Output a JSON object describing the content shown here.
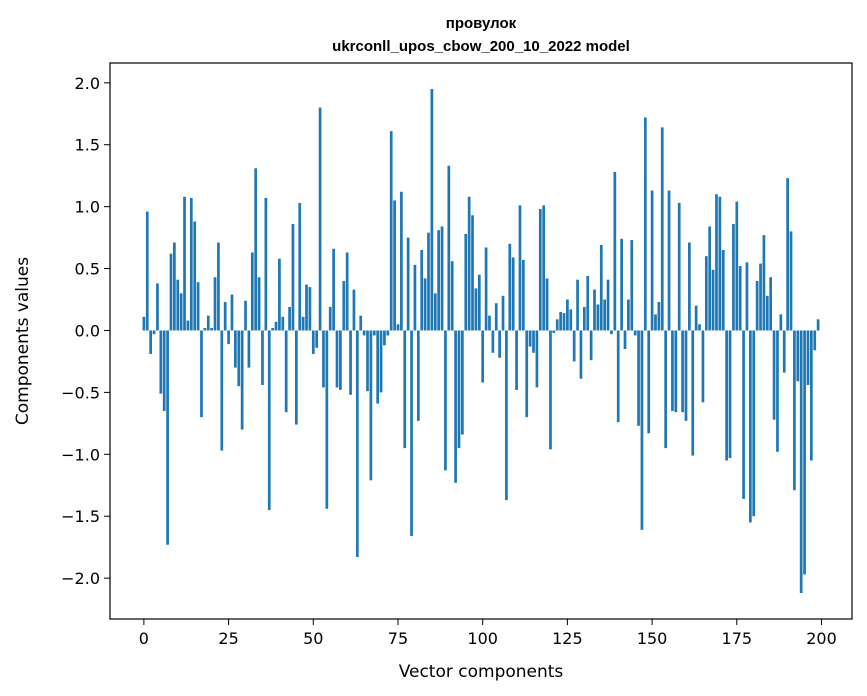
{
  "chart_data": {
    "type": "bar",
    "title_line1": "провулок",
    "title_line2": "ukrconll_upos_cbow_200_10_2022 model",
    "xlabel": "Vector components",
    "ylabel": "Components values",
    "xlim": [
      -10,
      209
    ],
    "ylim": [
      -2.33,
      2.16
    ],
    "xticks": [
      0,
      25,
      50,
      75,
      100,
      125,
      150,
      175,
      200
    ],
    "yticks": [
      -2.0,
      -1.5,
      -1.0,
      -0.5,
      0.0,
      0.5,
      1.0,
      1.5,
      2.0
    ],
    "ytick_labels": [
      "−2.0",
      "−1.5",
      "−1.0",
      "−0.5",
      "0.0",
      "0.5",
      "1.0",
      "1.5",
      "2.0"
    ],
    "bar_color": "#1f77b4",
    "grid": false,
    "values": [
      0.11,
      0.96,
      -0.19,
      -0.03,
      0.38,
      -0.51,
      -0.65,
      -1.73,
      0.62,
      0.71,
      0.41,
      0.3,
      1.08,
      0.08,
      1.07,
      0.88,
      0.39,
      -0.7,
      0.02,
      0.12,
      0.02,
      0.43,
      0.71,
      -0.97,
      0.23,
      -0.11,
      0.29,
      -0.3,
      -0.45,
      -0.8,
      0.24,
      -0.3,
      0.63,
      1.31,
      0.43,
      -0.44,
      1.07,
      -1.45,
      0.02,
      0.07,
      0.58,
      0.11,
      -0.66,
      0.19,
      0.86,
      -0.76,
      1.03,
      0.11,
      0.37,
      0.35,
      -0.19,
      -0.14,
      1.8,
      -0.46,
      -1.44,
      0.19,
      0.66,
      -0.46,
      -0.48,
      0.4,
      0.63,
      -0.52,
      0.33,
      -1.83,
      0.12,
      -0.04,
      -0.49,
      -1.21,
      -0.04,
      -0.59,
      -0.5,
      -0.12,
      -0.04,
      1.61,
      1.05,
      0.05,
      1.12,
      -0.95,
      0.75,
      -1.66,
      0.53,
      -0.73,
      0.65,
      0.42,
      0.79,
      1.95,
      0.3,
      0.81,
      0.84,
      -1.13,
      1.33,
      0.56,
      -1.23,
      -0.95,
      -0.84,
      0.78,
      1.08,
      0.93,
      0.34,
      0.45,
      -0.42,
      0.67,
      0.12,
      -0.18,
      0.22,
      -0.22,
      0.28,
      -1.37,
      0.7,
      0.59,
      -0.48,
      1.01,
      0.57,
      -0.7,
      -0.13,
      -0.18,
      -0.46,
      0.98,
      1.01,
      0.42,
      -0.96,
      -0.02,
      0.09,
      0.15,
      0.14,
      0.25,
      0.17,
      -0.25,
      0.41,
      -0.39,
      0.19,
      0.44,
      -0.24,
      0.33,
      0.21,
      0.69,
      0.25,
      0.41,
      -0.03,
      1.28,
      -0.74,
      0.74,
      -0.15,
      0.25,
      0.73,
      -0.04,
      -0.77,
      -1.61,
      1.72,
      -0.83,
      1.13,
      0.13,
      0.23,
      1.64,
      -0.95,
      1.13,
      -0.65,
      -0.66,
      1.03,
      -0.66,
      -0.73,
      0.71,
      -1.01,
      0.2,
      0.05,
      -0.58,
      0.6,
      0.84,
      0.49,
      1.1,
      1.08,
      0.65,
      -1.05,
      -1.03,
      0.86,
      1.04,
      0.52,
      -1.36,
      0.55,
      -1.55,
      -1.5,
      0.4,
      0.54,
      0.77,
      0.28,
      0.43,
      -0.72,
      -0.98,
      0.13,
      -0.34,
      1.23,
      0.8,
      -1.29,
      -0.41,
      -2.12,
      -1.97,
      -0.44,
      -1.05,
      -0.16,
      0.09
    ]
  }
}
